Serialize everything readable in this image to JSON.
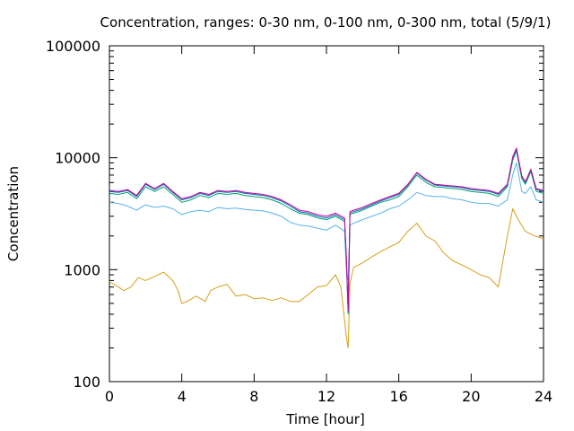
{
  "chart_data": {
    "type": "line",
    "title": "Concentration, ranges: 0-30 nm, 0-100 nm, 0-300 nm, total (5/9/1)",
    "xlabel": "Time [hour]",
    "ylabel": "Concentration",
    "x_range": [
      0,
      24
    ],
    "y_range": [
      100,
      100000
    ],
    "y_scale": "log",
    "x_ticks": [
      0,
      4,
      8,
      12,
      16,
      20,
      24
    ],
    "x_tick_labels": [
      "0",
      "4",
      "8",
      "12",
      "16",
      "20",
      "24"
    ],
    "y_ticks": [
      100,
      1000,
      10000,
      100000
    ],
    "y_tick_labels": [
      "100",
      "1000",
      "10000",
      "100000"
    ],
    "grid": false,
    "legend": "none",
    "series": [
      {
        "color": "#d4a017",
        "x": [
          0,
          0.5,
          0.8,
          1.2,
          1.6,
          2.0,
          2.5,
          3.0,
          3.5,
          3.8,
          4.0,
          4.3,
          4.8,
          5.3,
          5.6,
          6.0,
          6.5,
          7.0,
          7.5,
          8.0,
          8.5,
          9.0,
          9.5,
          10.0,
          10.5,
          11.0,
          11.5,
          12.0,
          12.5,
          12.8,
          13.0,
          13.1,
          13.2,
          13.3,
          13.5,
          14.0,
          14.5,
          15.0,
          15.5,
          16.0,
          16.5,
          17.0,
          17.5,
          18.0,
          18.5,
          19.0,
          19.5,
          20.0,
          20.5,
          21.0,
          21.5,
          22.0,
          22.3,
          22.6,
          23.0,
          23.5,
          24.0
        ],
        "values": [
          780,
          700,
          650,
          700,
          850,
          800,
          870,
          950,
          800,
          650,
          500,
          520,
          580,
          520,
          650,
          700,
          740,
          580,
          600,
          550,
          560,
          530,
          560,
          520,
          520,
          600,
          700,
          720,
          900,
          700,
          350,
          250,
          200,
          750,
          1050,
          1150,
          1300,
          1450,
          1600,
          1750,
          2200,
          2600,
          2000,
          1800,
          1400,
          1200,
          1100,
          1000,
          900,
          850,
          700,
          2000,
          3500,
          2800,
          2200,
          2000,
          1900
        ]
      },
      {
        "color": "#56b4e9",
        "x": [
          0,
          0.5,
          1.0,
          1.5,
          2.0,
          2.5,
          3.0,
          3.5,
          4.0,
          4.5,
          5.0,
          5.5,
          6.0,
          6.5,
          7.0,
          7.5,
          8.0,
          8.5,
          9.0,
          9.5,
          10.0,
          10.5,
          11.0,
          11.5,
          12.0,
          12.5,
          13.0,
          13.1,
          13.2,
          13.3,
          13.5,
          14.0,
          14.5,
          15.0,
          15.5,
          16.0,
          16.5,
          17.0,
          17.5,
          18.0,
          18.5,
          19.0,
          19.5,
          20.0,
          20.5,
          21.0,
          21.5,
          22.0,
          22.3,
          22.5,
          22.8,
          23.0,
          23.3,
          23.6,
          24.0
        ],
        "values": [
          4000,
          3900,
          3700,
          3400,
          3800,
          3600,
          3700,
          3500,
          3100,
          3300,
          3400,
          3300,
          3600,
          3500,
          3550,
          3450,
          3400,
          3350,
          3200,
          3000,
          2650,
          2500,
          2450,
          2350,
          2250,
          2500,
          2200,
          1000,
          800,
          2500,
          2600,
          2800,
          3000,
          3200,
          3500,
          3700,
          4200,
          4900,
          4600,
          4500,
          4500,
          4300,
          4200,
          4000,
          3900,
          3900,
          3700,
          4200,
          7000,
          9000,
          5000,
          4800,
          5500,
          4200,
          4000
        ]
      },
      {
        "color": "#009e73",
        "x": [
          0,
          0.5,
          1.0,
          1.5,
          2.0,
          2.5,
          3.0,
          3.5,
          4.0,
          4.5,
          5.0,
          5.5,
          6.0,
          6.5,
          7.0,
          7.5,
          8.0,
          8.5,
          9.0,
          9.5,
          10.0,
          10.5,
          11.0,
          11.5,
          12.0,
          12.5,
          13.0,
          13.1,
          13.2,
          13.3,
          13.5,
          14.0,
          14.5,
          15.0,
          15.5,
          16.0,
          16.5,
          17.0,
          17.5,
          18.0,
          18.5,
          19.0,
          19.5,
          20.0,
          20.5,
          21.0,
          21.5,
          22.0,
          22.3,
          22.5,
          22.8,
          23.0,
          23.3,
          23.6,
          24.0
        ],
        "values": [
          4800,
          4700,
          4900,
          4300,
          5500,
          5000,
          5500,
          4700,
          4000,
          4200,
          4600,
          4400,
          4800,
          4700,
          4800,
          4600,
          4500,
          4400,
          4200,
          3900,
          3500,
          3200,
          3100,
          2900,
          2800,
          3000,
          2700,
          1200,
          400,
          3100,
          3200,
          3400,
          3700,
          4000,
          4200,
          4500,
          5500,
          7000,
          6000,
          5500,
          5400,
          5300,
          5200,
          5000,
          4900,
          4800,
          4500,
          5500,
          9500,
          11500,
          6500,
          5800,
          7500,
          5000,
          4800
        ]
      },
      {
        "color": "#0072b2",
        "x": [
          0,
          0.5,
          1.0,
          1.5,
          2.0,
          2.5,
          3.0,
          3.5,
          4.0,
          4.5,
          5.0,
          5.5,
          6.0,
          6.5,
          7.0,
          7.5,
          8.0,
          8.5,
          9.0,
          9.5,
          10.0,
          10.5,
          11.0,
          11.5,
          12.0,
          12.5,
          13.0,
          13.1,
          13.2,
          13.3,
          13.5,
          14.0,
          14.5,
          15.0,
          15.5,
          16.0,
          16.5,
          17.0,
          17.5,
          18.0,
          18.5,
          19.0,
          19.5,
          20.0,
          20.5,
          21.0,
          21.5,
          22.0,
          22.3,
          22.5,
          22.8,
          23.0,
          23.3,
          23.6,
          24.0
        ],
        "values": [
          5000,
          4900,
          5100,
          4500,
          5800,
          5200,
          5800,
          4900,
          4200,
          4400,
          4800,
          4600,
          5000,
          4900,
          5000,
          4800,
          4700,
          4600,
          4400,
          4100,
          3700,
          3300,
          3200,
          3000,
          2900,
          3100,
          2800,
          1250,
          420,
          3200,
          3300,
          3500,
          3800,
          4100,
          4400,
          4700,
          5700,
          7300,
          6300,
          5700,
          5600,
          5500,
          5400,
          5200,
          5100,
          5000,
          4700,
          5700,
          10000,
          12000,
          6800,
          6000,
          7800,
          5200,
          5000
        ]
      },
      {
        "color": "#cc0099",
        "x": [
          0,
          0.5,
          1.0,
          1.5,
          2.0,
          2.5,
          3.0,
          3.5,
          4.0,
          4.5,
          5.0,
          5.5,
          6.0,
          6.5,
          7.0,
          7.5,
          8.0,
          8.5,
          9.0,
          9.5,
          10.0,
          10.5,
          11.0,
          11.5,
          12.0,
          12.5,
          13.0,
          13.1,
          13.2,
          13.3,
          13.5,
          14.0,
          14.5,
          15.0,
          15.5,
          16.0,
          16.5,
          17.0,
          17.5,
          18.0,
          18.5,
          19.0,
          19.5,
          20.0,
          20.5,
          21.0,
          21.5,
          22.0,
          22.3,
          22.5,
          22.8,
          23.0,
          23.3,
          23.6,
          24.0
        ],
        "values": [
          5100,
          5000,
          5200,
          4600,
          5900,
          5300,
          5900,
          5000,
          4300,
          4500,
          4900,
          4700,
          5100,
          5000,
          5100,
          4900,
          4800,
          4700,
          4500,
          4200,
          3800,
          3400,
          3300,
          3100,
          3000,
          3200,
          2900,
          1300,
          430,
          3300,
          3400,
          3600,
          3900,
          4200,
          4500,
          4800,
          5800,
          7400,
          6400,
          5800,
          5700,
          5600,
          5500,
          5300,
          5200,
          5100,
          4800,
          5800,
          10200,
          12200,
          6900,
          6100,
          7900,
          5300,
          5100
        ]
      }
    ]
  }
}
